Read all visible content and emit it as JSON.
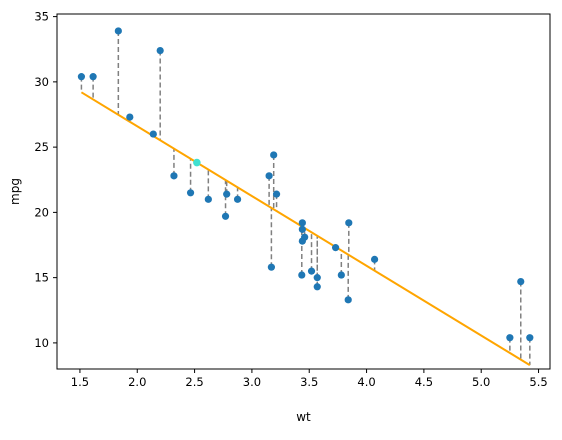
{
  "chart_data": {
    "type": "scatter",
    "title": "",
    "xlabel": "wt",
    "ylabel": "mpg",
    "xlim": [
      1.3,
      5.6
    ],
    "ylim": [
      8.0,
      35.2
    ],
    "xticks": [
      1.5,
      2.0,
      2.5,
      3.0,
      3.5,
      4.0,
      4.5,
      5.0,
      5.5
    ],
    "yticks": [
      10,
      15,
      20,
      25,
      30,
      35
    ],
    "xtick_labels": [
      "1.5",
      "2.0",
      "2.5",
      "3.0",
      "3.5",
      "4.0",
      "4.5",
      "5.0",
      "5.5"
    ],
    "ytick_labels": [
      "10",
      "15",
      "20",
      "25",
      "30",
      "35"
    ],
    "grid": false,
    "legend": "none",
    "colors": {
      "points": "#1f77b4",
      "highlight": "#40e0d0",
      "fit_line": "#ffa500",
      "residuals": "#808080"
    },
    "fit_line": {
      "intercept": 37.285,
      "slope": -5.344,
      "x_range": [
        1.513,
        5.424
      ]
    },
    "highlight_point": {
      "x": 2.52,
      "y": 23.82
    },
    "points": [
      {
        "x": 2.62,
        "y": 21.0
      },
      {
        "x": 2.875,
        "y": 21.0
      },
      {
        "x": 2.32,
        "y": 22.8
      },
      {
        "x": 3.215,
        "y": 21.4
      },
      {
        "x": 3.44,
        "y": 18.7
      },
      {
        "x": 3.46,
        "y": 18.1
      },
      {
        "x": 3.57,
        "y": 14.3
      },
      {
        "x": 3.19,
        "y": 24.4
      },
      {
        "x": 3.15,
        "y": 22.8
      },
      {
        "x": 3.44,
        "y": 19.2
      },
      {
        "x": 3.44,
        "y": 17.8
      },
      {
        "x": 4.07,
        "y": 16.4
      },
      {
        "x": 3.73,
        "y": 17.3
      },
      {
        "x": 3.78,
        "y": 15.2
      },
      {
        "x": 5.25,
        "y": 10.4
      },
      {
        "x": 5.424,
        "y": 10.4
      },
      {
        "x": 5.345,
        "y": 14.7
      },
      {
        "x": 2.2,
        "y": 32.4
      },
      {
        "x": 1.615,
        "y": 30.4
      },
      {
        "x": 1.835,
        "y": 33.9
      },
      {
        "x": 2.465,
        "y": 21.5
      },
      {
        "x": 3.52,
        "y": 15.5
      },
      {
        "x": 3.435,
        "y": 15.2
      },
      {
        "x": 3.84,
        "y": 13.3
      },
      {
        "x": 3.845,
        "y": 19.2
      },
      {
        "x": 1.935,
        "y": 27.3
      },
      {
        "x": 2.14,
        "y": 26.0
      },
      {
        "x": 1.513,
        "y": 30.4
      },
      {
        "x": 3.17,
        "y": 15.8
      },
      {
        "x": 2.77,
        "y": 19.7
      },
      {
        "x": 3.57,
        "y": 15.0
      },
      {
        "x": 2.78,
        "y": 21.4
      }
    ]
  }
}
